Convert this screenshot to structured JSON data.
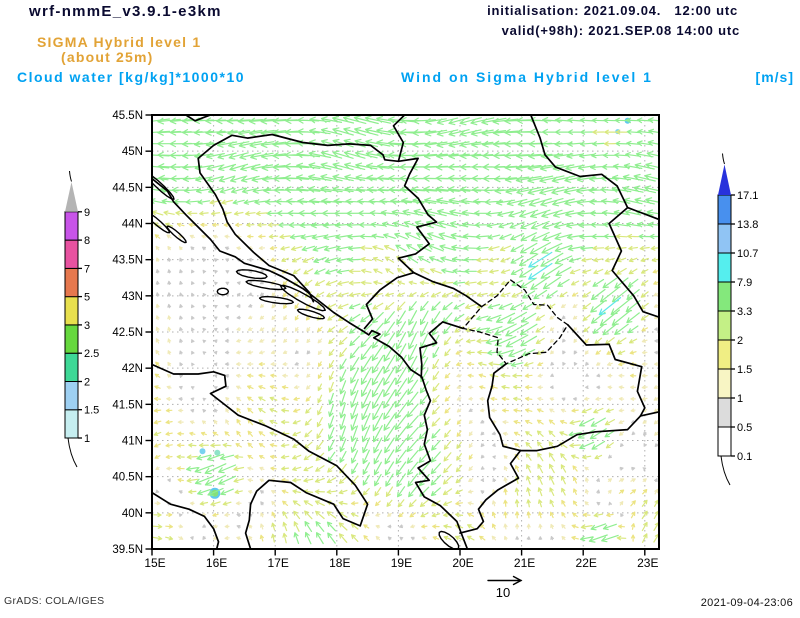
{
  "header": {
    "model_title": "wrf-nmmE_v3.9.1-e3km",
    "level_title": "SIGMA Hybrid level 1",
    "level_subtitle": "(about 25m)",
    "shaded_field_title": "Cloud water [kg/kg]*1000*10",
    "init_line": "initialisation: 2021.09.04.   12:00 utc",
    "valid_line": "valid(+98h): 2021.SEP.08 14:00 utc",
    "vector_field_title": "Wind on Sigma Hybrid level 1",
    "vector_field_units": "[m/s]"
  },
  "colors": {
    "title_dark": "#0a0a30",
    "title_orange": "#e2a336",
    "title_azure": "#00a2f2",
    "map_outline": "#000000",
    "gridline": "#b0b0b0"
  },
  "map_axes": {
    "lat_labels": [
      "45.5N",
      "45N",
      "44.5N",
      "44N",
      "43.5N",
      "43N",
      "42.5N",
      "42N",
      "41.5N",
      "41N",
      "40.5N",
      "40N",
      "39.5N"
    ],
    "lon_labels": [
      "15E",
      "16E",
      "17E",
      "18E",
      "19E",
      "20E",
      "21E",
      "22E",
      "23E"
    ]
  },
  "cloud_water_colorbar": {
    "side": "left",
    "tick_labels": [
      "1",
      "1.5",
      "2",
      "2.5",
      "3",
      "5",
      "7",
      "8",
      "9"
    ],
    "segment_colors": [
      "#c6eef0",
      "#9ed0f2",
      "#3ed896",
      "#66d83e",
      "#e8e04e",
      "#e6784e",
      "#e852a0",
      "#c854e8"
    ],
    "over_arrow_color": "#b4b4b4"
  },
  "wind_speed_colorbar": {
    "side": "right",
    "tick_labels": [
      "0.1",
      "0.5",
      "1",
      "1.5",
      "2",
      "3.3",
      "7.9",
      "10.7",
      "13.8",
      "17.1"
    ],
    "segment_colors": [
      "#ffffff",
      "#dcdcdc",
      "#f8f5c4",
      "#f0ee84",
      "#c4f086",
      "#84e87c",
      "#55eeee",
      "#90c4f4",
      "#4890ee"
    ],
    "over_arrow_color": "#2832dc"
  },
  "wind_arrow_bins": {
    "thresholds": [
      0.5,
      1,
      1.5,
      2,
      3.3,
      7.9,
      10.7,
      13.8
    ],
    "colors": [
      "#c9c9c9",
      "#f0eab8",
      "#ece483",
      "#d9e87e",
      "#90ee90",
      "#5fe8e8",
      "#8cc2f0",
      "#4890ee"
    ]
  },
  "reference_vector": {
    "label": "10"
  },
  "cloud_water_spots": [
    {
      "lon": 15.82,
      "lat": 40.85,
      "r": 3,
      "color": "#79d2f0"
    },
    {
      "lon": 16.06,
      "lat": 40.83,
      "r": 3,
      "color": "#8fe3c9"
    },
    {
      "lon": 16.02,
      "lat": 40.27,
      "r": 4.5,
      "color": "#86df7a",
      "ring": "#5fc8f0"
    },
    {
      "lon": 22.72,
      "lat": 45.42,
      "r": 3,
      "color": "#5fc8f0"
    },
    {
      "lon": 22.56,
      "lat": 45.27,
      "r": 2.5,
      "color": "#79d2f0"
    }
  ],
  "footer": {
    "credit": "GrADS: COLA/IGES",
    "timestamp": "2021-09-04-23:06"
  }
}
